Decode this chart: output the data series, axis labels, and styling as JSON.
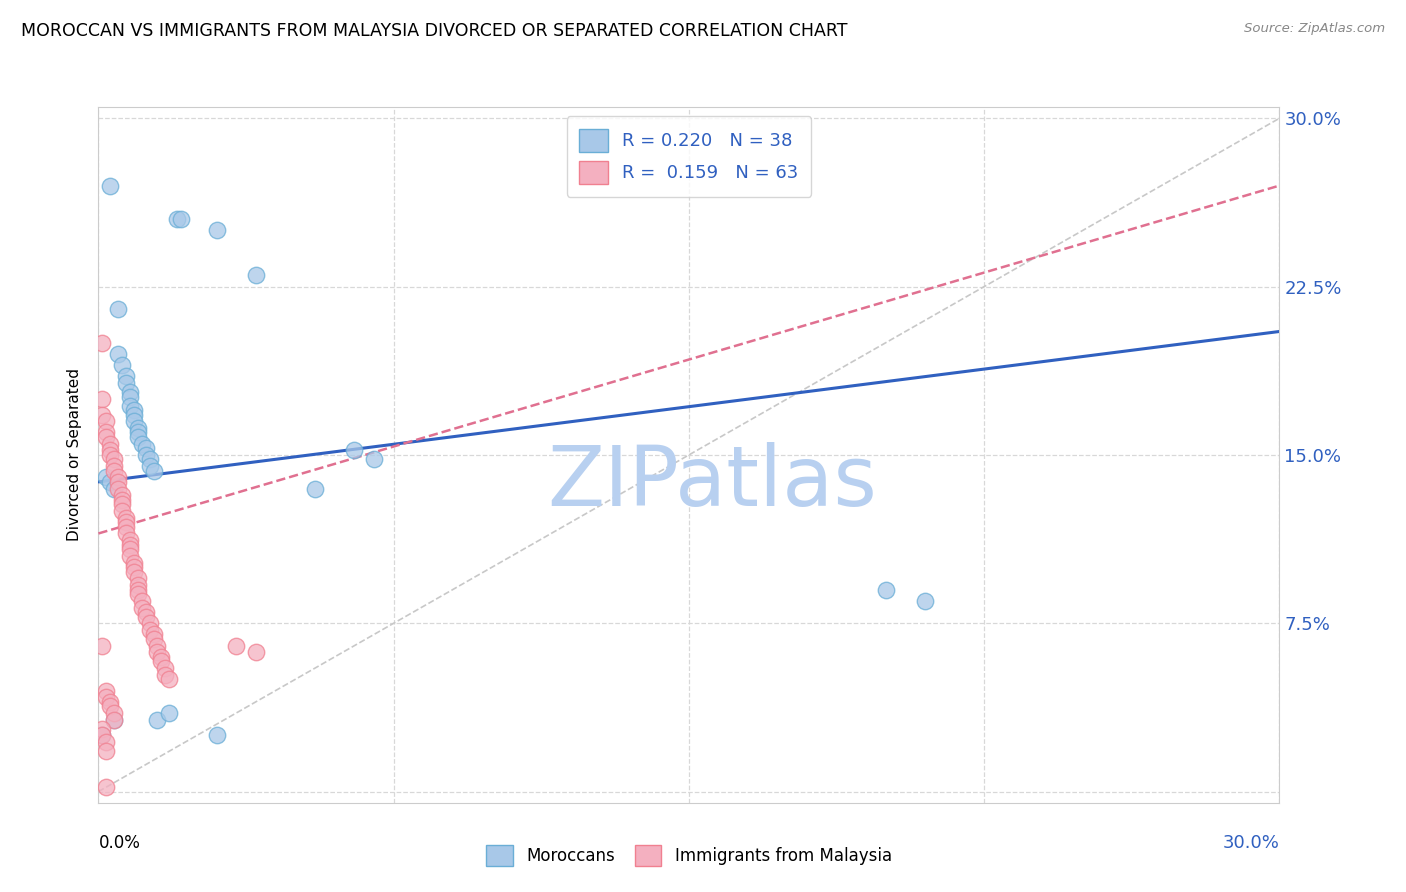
{
  "title": "MOROCCAN VS IMMIGRANTS FROM MALAYSIA DIVORCED OR SEPARATED CORRELATION CHART",
  "source": "Source: ZipAtlas.com",
  "ylabel": "Divorced or Separated",
  "watermark": "ZIPatlas",
  "legend_moroccan_R": 0.22,
  "legend_moroccan_N": 38,
  "legend_malaysia_R": 0.159,
  "legend_malaysia_N": 63,
  "moroccan_scatter": [
    [
      0.003,
      0.27
    ],
    [
      0.02,
      0.255
    ],
    [
      0.021,
      0.255
    ],
    [
      0.03,
      0.25
    ],
    [
      0.04,
      0.23
    ],
    [
      0.005,
      0.215
    ],
    [
      0.005,
      0.195
    ],
    [
      0.006,
      0.19
    ],
    [
      0.007,
      0.185
    ],
    [
      0.007,
      0.182
    ],
    [
      0.008,
      0.178
    ],
    [
      0.008,
      0.176
    ],
    [
      0.008,
      0.172
    ],
    [
      0.009,
      0.17
    ],
    [
      0.009,
      0.168
    ],
    [
      0.009,
      0.165
    ],
    [
      0.01,
      0.162
    ],
    [
      0.01,
      0.16
    ],
    [
      0.01,
      0.158
    ],
    [
      0.011,
      0.155
    ],
    [
      0.012,
      0.153
    ],
    [
      0.012,
      0.15
    ],
    [
      0.013,
      0.148
    ],
    [
      0.013,
      0.145
    ],
    [
      0.014,
      0.143
    ],
    [
      0.065,
      0.152
    ],
    [
      0.07,
      0.148
    ],
    [
      0.2,
      0.09
    ],
    [
      0.21,
      0.085
    ],
    [
      0.055,
      0.135
    ],
    [
      0.002,
      0.14
    ],
    [
      0.003,
      0.138
    ],
    [
      0.004,
      0.135
    ],
    [
      0.004,
      0.032
    ],
    [
      0.015,
      0.032
    ],
    [
      0.018,
      0.035
    ],
    [
      0.001,
      0.025
    ],
    [
      0.03,
      0.025
    ]
  ],
  "malaysia_scatter": [
    [
      0.001,
      0.2
    ],
    [
      0.001,
      0.175
    ],
    [
      0.001,
      0.168
    ],
    [
      0.002,
      0.165
    ],
    [
      0.002,
      0.16
    ],
    [
      0.002,
      0.158
    ],
    [
      0.003,
      0.155
    ],
    [
      0.003,
      0.152
    ],
    [
      0.003,
      0.15
    ],
    [
      0.004,
      0.148
    ],
    [
      0.004,
      0.145
    ],
    [
      0.004,
      0.143
    ],
    [
      0.005,
      0.14
    ],
    [
      0.005,
      0.138
    ],
    [
      0.005,
      0.135
    ],
    [
      0.006,
      0.132
    ],
    [
      0.006,
      0.13
    ],
    [
      0.006,
      0.128
    ],
    [
      0.006,
      0.125
    ],
    [
      0.007,
      0.122
    ],
    [
      0.007,
      0.12
    ],
    [
      0.007,
      0.118
    ],
    [
      0.007,
      0.115
    ],
    [
      0.008,
      0.112
    ],
    [
      0.008,
      0.11
    ],
    [
      0.008,
      0.108
    ],
    [
      0.008,
      0.105
    ],
    [
      0.009,
      0.102
    ],
    [
      0.009,
      0.1
    ],
    [
      0.009,
      0.098
    ],
    [
      0.01,
      0.095
    ],
    [
      0.01,
      0.092
    ],
    [
      0.01,
      0.09
    ],
    [
      0.01,
      0.088
    ],
    [
      0.011,
      0.085
    ],
    [
      0.011,
      0.082
    ],
    [
      0.012,
      0.08
    ],
    [
      0.012,
      0.078
    ],
    [
      0.013,
      0.075
    ],
    [
      0.013,
      0.072
    ],
    [
      0.014,
      0.07
    ],
    [
      0.014,
      0.068
    ],
    [
      0.015,
      0.065
    ],
    [
      0.015,
      0.062
    ],
    [
      0.016,
      0.06
    ],
    [
      0.016,
      0.058
    ],
    [
      0.017,
      0.055
    ],
    [
      0.017,
      0.052
    ],
    [
      0.018,
      0.05
    ],
    [
      0.002,
      0.045
    ],
    [
      0.002,
      0.042
    ],
    [
      0.003,
      0.04
    ],
    [
      0.003,
      0.038
    ],
    [
      0.004,
      0.035
    ],
    [
      0.004,
      0.032
    ],
    [
      0.001,
      0.028
    ],
    [
      0.001,
      0.025
    ],
    [
      0.002,
      0.022
    ],
    [
      0.002,
      0.018
    ],
    [
      0.001,
      0.065
    ],
    [
      0.035,
      0.065
    ],
    [
      0.04,
      0.062
    ],
    [
      0.002,
      0.002
    ]
  ],
  "moroccan_line": {
    "x0": 0.0,
    "y0": 0.138,
    "x1": 0.3,
    "y1": 0.205
  },
  "malaysia_line": {
    "x0": 0.0,
    "y0": 0.115,
    "x1": 0.3,
    "y1": 0.27
  },
  "diagonal_line": {
    "x0": 0.0,
    "y0": 0.0,
    "x1": 0.3,
    "y1": 0.3
  },
  "xlim": [
    0.0,
    0.3
  ],
  "ylim": [
    -0.005,
    0.305
  ],
  "yticks": [
    0.075,
    0.15,
    0.225,
    0.3
  ],
  "yticklabels": [
    "7.5%",
    "15.0%",
    "22.5%",
    "30.0%"
  ],
  "moroccan_color": "#a8c8e8",
  "malaysia_color": "#f4b0c0",
  "moroccan_scatter_edge": "#6aaed6",
  "malaysia_scatter_edge": "#f08090",
  "moroccan_line_color": "#3060c0",
  "malaysia_line_color": "#e07090",
  "diagonal_color": "#c8c8c8",
  "grid_color": "#d8d8d8",
  "background_color": "#ffffff",
  "title_fontsize": 12.5,
  "axis_label_color": "#3060c0",
  "watermark_color": "#b8d0f0",
  "watermark_fontsize": 60
}
